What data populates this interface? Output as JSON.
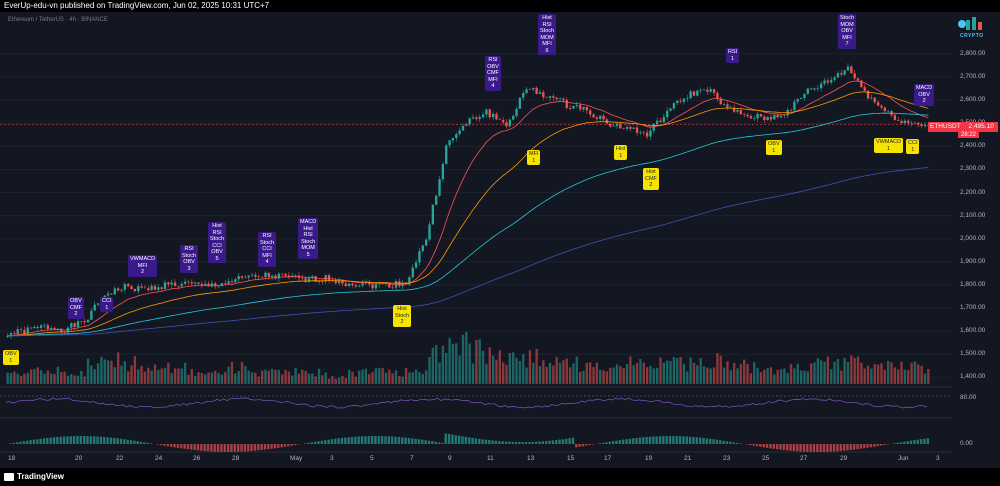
{
  "header": {
    "publisher_text": "EverUp-edu-vn published on TradingView.com, Jun 02, 2025 10:31 UTC+7"
  },
  "symbol": {
    "title": "Ethereum / TetherUS · 4h · BINANCE"
  },
  "brand": {
    "text": "CRYPTO"
  },
  "price_axis": {
    "labels": [
      "2,800.00",
      "2,700.00",
      "2,600.00",
      "2,500.00",
      "2,400.00",
      "2,300.00",
      "2,200.00",
      "2,100.00",
      "2,000.00",
      "1,900.00",
      "1,800.00",
      "1,700.00",
      "1,600.00",
      "1,500.00",
      "1,400.00"
    ],
    "last_price_symbol": "ETHUSDT",
    "last_price": "2,495.10",
    "countdown": "28:22"
  },
  "oscillator_labels": {
    "rsi_level": "80.00",
    "macd_zero": "0.00"
  },
  "time_axis": {
    "labels": [
      "18",
      "20",
      "22",
      "24",
      "26",
      "28",
      "May",
      "3",
      "5",
      "7",
      "9",
      "11",
      "13",
      "15",
      "17",
      "19",
      "21",
      "23",
      "25",
      "27",
      "29",
      "Jun",
      "3"
    ]
  },
  "footer": {
    "logo_text": "TradingView"
  },
  "colors": {
    "background": "#131722",
    "up": "#26a69a",
    "down": "#ef5350",
    "bear_badge": "#3a1a8a",
    "bull_badge": "#f5e400",
    "ema_fast": "#ff5252",
    "ema_mid": "#ff9800",
    "ema_slow_1": "#26c6da",
    "ema_slow_2": "#3f51b5"
  },
  "divergence_badges": [
    {
      "kind": "bull",
      "lines": "OBV\n1"
    },
    {
      "kind": "bear",
      "lines": "OBV\nCMF\n2"
    },
    {
      "kind": "bear",
      "lines": "CCI\n1"
    },
    {
      "kind": "bear",
      "lines": "VWMACD\nMFI\n2"
    },
    {
      "kind": "bear",
      "lines": "RSI\nStoch\nOBV\n3"
    },
    {
      "kind": "bear",
      "lines": "Hist\nRSI\nStoch\nCCI\nOBV\n5"
    },
    {
      "kind": "bear",
      "lines": "RSI\nStoch\nCCI\nMFI\n4"
    },
    {
      "kind": "bear",
      "lines": "MACD\nHist\nRSI\nStoch\nMOM\n5"
    },
    {
      "kind": "bull",
      "lines": "Hist\nStoch\n2"
    },
    {
      "kind": "bear",
      "lines": "RSI\nOBV\nCMF\nMFI\n4"
    },
    {
      "kind": "bear",
      "lines": "Hist\nRSI\nStoch\nMOM\nMFI\n6"
    },
    {
      "kind": "bull",
      "lines": "MFI\n1"
    },
    {
      "kind": "bull",
      "lines": "Hist\n1"
    },
    {
      "kind": "bull",
      "lines": "Hist\nCMF\n2"
    },
    {
      "kind": "bear",
      "lines": "RSI\n1"
    },
    {
      "kind": "bull",
      "lines": "OBV\n1"
    },
    {
      "kind": "bear",
      "lines": "Stoch\nMOM\nOBV\nMFI\n7"
    },
    {
      "kind": "bear",
      "lines": "MACD\nOBV\n2"
    },
    {
      "kind": "bull",
      "lines": "VWMACD\n1"
    },
    {
      "kind": "bull",
      "lines": "CCI\n1"
    }
  ],
  "chart_data": {
    "type": "candlestick",
    "timeframe": "4h",
    "ylim": [
      1380,
      2830
    ],
    "x": [
      "Apr 17",
      "Apr 18",
      "Apr 19",
      "Apr 20",
      "Apr 21",
      "Apr 22",
      "Apr 23",
      "Apr 24",
      "Apr 25",
      "Apr 26",
      "Apr 27",
      "Apr 28",
      "Apr 29",
      "Apr 30",
      "May 1",
      "May 2",
      "May 3",
      "May 4",
      "May 5",
      "May 6",
      "May 7",
      "May 8",
      "May 9",
      "May 10",
      "May 11",
      "May 12",
      "May 13",
      "May 14",
      "May 15",
      "May 16",
      "May 17",
      "May 18",
      "May 19",
      "May 20",
      "May 21",
      "May 22",
      "May 23",
      "May 24",
      "May 25",
      "May 26",
      "May 27",
      "May 28",
      "May 29",
      "May 30",
      "May 31",
      "Jun 1",
      "Jun 2"
    ],
    "close": [
      1585,
      1600,
      1620,
      1610,
      1640,
      1760,
      1790,
      1780,
      1800,
      1805,
      1795,
      1810,
      1830,
      1840,
      1835,
      1820,
      1830,
      1810,
      1800,
      1800,
      1810,
      2000,
      2400,
      2500,
      2550,
      2490,
      2650,
      2620,
      2580,
      2560,
      2500,
      2480,
      2450,
      2550,
      2620,
      2650,
      2560,
      2530,
      2520,
      2550,
      2640,
      2680,
      2740,
      2620,
      2540,
      2500,
      2495
    ],
    "volume_relative": [
      0.3,
      0.3,
      0.4,
      0.3,
      0.5,
      0.6,
      0.5,
      0.4,
      0.4,
      0.3,
      0.3,
      0.4,
      0.3,
      0.3,
      0.3,
      0.3,
      0.2,
      0.3,
      0.3,
      0.3,
      0.4,
      0.7,
      1.0,
      0.8,
      0.7,
      0.6,
      0.7,
      0.5,
      0.5,
      0.4,
      0.4,
      0.5,
      0.5,
      0.5,
      0.5,
      0.6,
      0.5,
      0.4,
      0.3,
      0.4,
      0.5,
      0.5,
      0.6,
      0.5,
      0.5,
      0.4,
      0.3
    ]
  }
}
